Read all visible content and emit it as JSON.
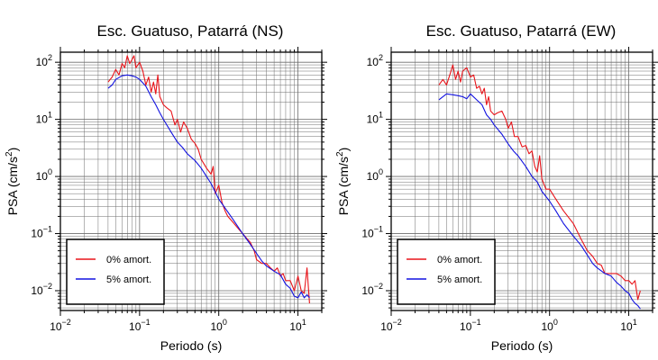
{
  "chart_data": [
    {
      "type": "line",
      "title": "Esc. Guatuso, Patarrá (NS)",
      "xlabel": "Periodo (s)",
      "ylabel_main": "PSA (cm/s",
      "ylabel_sup": "2",
      "ylabel_close": ")",
      "x_scale": "log",
      "y_scale": "log",
      "xlim": [
        0.01,
        20
      ],
      "ylim": [
        0.0045,
        150
      ],
      "grid": true,
      "legend_position": "bottom-left",
      "x_ticks": [
        {
          "value": 0.01,
          "base": "10",
          "exp": "−2"
        },
        {
          "value": 0.1,
          "base": "10",
          "exp": "−1"
        },
        {
          "value": 1,
          "base": "10",
          "exp": "0"
        },
        {
          "value": 10,
          "base": "10",
          "exp": "1"
        }
      ],
      "y_ticks": [
        {
          "value": 0.01,
          "base": "10",
          "exp": "−2"
        },
        {
          "value": 0.1,
          "base": "10",
          "exp": "−1"
        },
        {
          "value": 1,
          "base": "10",
          "exp": "0"
        },
        {
          "value": 10,
          "base": "10",
          "exp": "1"
        },
        {
          "value": 100,
          "base": "10",
          "exp": "2"
        }
      ],
      "series": [
        {
          "name": "0% amort.",
          "color": "#e8141a",
          "x": [
            0.04,
            0.045,
            0.05,
            0.055,
            0.06,
            0.065,
            0.07,
            0.075,
            0.08,
            0.085,
            0.09,
            0.1,
            0.11,
            0.12,
            0.13,
            0.14,
            0.15,
            0.16,
            0.17,
            0.18,
            0.2,
            0.22,
            0.25,
            0.28,
            0.3,
            0.33,
            0.36,
            0.4,
            0.45,
            0.5,
            0.55,
            0.6,
            0.7,
            0.8,
            0.85,
            0.9,
            1.0,
            1.1,
            1.2,
            1.3,
            1.5,
            1.7,
            2.0,
            2.3,
            2.5,
            2.8,
            3.0,
            3.5,
            4.0,
            4.5,
            5.0,
            5.5,
            6.0,
            6.5,
            7.0,
            8.0,
            9.0,
            10.0,
            11.0,
            12.0,
            13.0,
            14.0
          ],
          "y": [
            45,
            55,
            75,
            60,
            95,
            80,
            130,
            95,
            110,
            130,
            80,
            100,
            70,
            40,
            55,
            30,
            45,
            28,
            60,
            25,
            18,
            16,
            14,
            8,
            10,
            6,
            9,
            7,
            4.5,
            3.8,
            3.0,
            2.0,
            1.4,
            1.1,
            1.5,
            0.5,
            0.7,
            0.35,
            0.25,
            0.2,
            0.16,
            0.13,
            0.1,
            0.08,
            0.07,
            0.05,
            0.035,
            0.03,
            0.03,
            0.025,
            0.022,
            0.025,
            0.018,
            0.02,
            0.015,
            0.015,
            0.01,
            0.018,
            0.01,
            0.009,
            0.025,
            0.006
          ]
        },
        {
          "name": "5% amort.",
          "color": "#1212e0",
          "x": [
            0.04,
            0.045,
            0.05,
            0.06,
            0.07,
            0.08,
            0.09,
            0.1,
            0.12,
            0.14,
            0.16,
            0.18,
            0.2,
            0.25,
            0.3,
            0.35,
            0.4,
            0.5,
            0.6,
            0.7,
            0.8,
            1.0,
            1.2,
            1.5,
            2.0,
            2.5,
            3.0,
            3.5,
            4.0,
            5.0,
            6.0,
            7.0,
            8.0,
            9.0,
            10.0,
            11.0,
            12.0,
            13.0,
            14.0
          ],
          "y": [
            35,
            40,
            50,
            58,
            60,
            58,
            55,
            50,
            38,
            25,
            18,
            13,
            10,
            6,
            4.0,
            3.2,
            2.5,
            1.9,
            1.4,
            1.0,
            0.75,
            0.4,
            0.28,
            0.18,
            0.1,
            0.065,
            0.045,
            0.033,
            0.027,
            0.022,
            0.019,
            0.013,
            0.011,
            0.008,
            0.0075,
            0.0095,
            0.0075,
            0.0085,
            0.0075
          ]
        }
      ]
    },
    {
      "type": "line",
      "title": "Esc. Guatuso, Patarrá (EW)",
      "xlabel": "Periodo (s)",
      "ylabel_main": "PSA (cm/s",
      "ylabel_sup": "2",
      "ylabel_close": ")",
      "x_scale": "log",
      "y_scale": "log",
      "xlim": [
        0.01,
        20
      ],
      "ylim": [
        0.0045,
        150
      ],
      "grid": true,
      "legend_position": "bottom-left",
      "x_ticks": [
        {
          "value": 0.01,
          "base": "10",
          "exp": "−2"
        },
        {
          "value": 0.1,
          "base": "10",
          "exp": "−1"
        },
        {
          "value": 1,
          "base": "10",
          "exp": "0"
        },
        {
          "value": 10,
          "base": "10",
          "exp": "1"
        }
      ],
      "y_ticks": [
        {
          "value": 0.01,
          "base": "10",
          "exp": "−2"
        },
        {
          "value": 0.1,
          "base": "10",
          "exp": "−1"
        },
        {
          "value": 1,
          "base": "10",
          "exp": "0"
        },
        {
          "value": 10,
          "base": "10",
          "exp": "1"
        },
        {
          "value": 100,
          "base": "10",
          "exp": "2"
        }
      ],
      "series": [
        {
          "name": "0% amort.",
          "color": "#e8141a",
          "x": [
            0.04,
            0.045,
            0.05,
            0.055,
            0.06,
            0.065,
            0.07,
            0.075,
            0.08,
            0.09,
            0.1,
            0.11,
            0.12,
            0.13,
            0.14,
            0.15,
            0.16,
            0.17,
            0.18,
            0.2,
            0.22,
            0.25,
            0.28,
            0.3,
            0.33,
            0.36,
            0.4,
            0.45,
            0.5,
            0.55,
            0.6,
            0.65,
            0.7,
            0.75,
            0.8,
            0.9,
            1.0,
            1.2,
            1.5,
            2.0,
            2.5,
            3.0,
            3.5,
            4.0,
            4.5,
            5.0,
            6.0,
            7.0,
            8.0,
            9.0,
            10.0,
            11.0,
            12.0,
            13.0,
            14.0
          ],
          "y": [
            40,
            50,
            40,
            60,
            90,
            50,
            70,
            45,
            70,
            80,
            55,
            60,
            35,
            38,
            28,
            35,
            18,
            25,
            14,
            12,
            13,
            14,
            10,
            7,
            9,
            5,
            5,
            3.3,
            3.5,
            2.5,
            2.8,
            1.5,
            1.2,
            2.3,
            0.9,
            0.6,
            0.6,
            0.4,
            0.25,
            0.15,
            0.08,
            0.05,
            0.04,
            0.03,
            0.028,
            0.02,
            0.02,
            0.02,
            0.018,
            0.015,
            0.015,
            0.013,
            0.015,
            0.007,
            0.01
          ]
        },
        {
          "name": "5% amort.",
          "color": "#1212e0",
          "x": [
            0.04,
            0.045,
            0.05,
            0.06,
            0.07,
            0.08,
            0.09,
            0.1,
            0.12,
            0.14,
            0.16,
            0.18,
            0.2,
            0.25,
            0.3,
            0.35,
            0.4,
            0.5,
            0.6,
            0.7,
            0.8,
            1.0,
            1.2,
            1.5,
            2.0,
            2.5,
            3.0,
            3.5,
            4.0,
            5.0,
            6.0,
            7.0,
            8.0,
            9.0,
            10.0,
            11.0,
            12.0,
            13.0,
            14.0
          ],
          "y": [
            22,
            25,
            28,
            27,
            26,
            25,
            23,
            28,
            22,
            18,
            12,
            10,
            8,
            5.5,
            3.7,
            2.8,
            2.3,
            1.5,
            1.0,
            0.8,
            0.55,
            0.37,
            0.25,
            0.15,
            0.09,
            0.062,
            0.042,
            0.03,
            0.025,
            0.02,
            0.018,
            0.014,
            0.012,
            0.01,
            0.009,
            0.007,
            0.006,
            0.0055,
            0.0048
          ]
        }
      ]
    }
  ]
}
